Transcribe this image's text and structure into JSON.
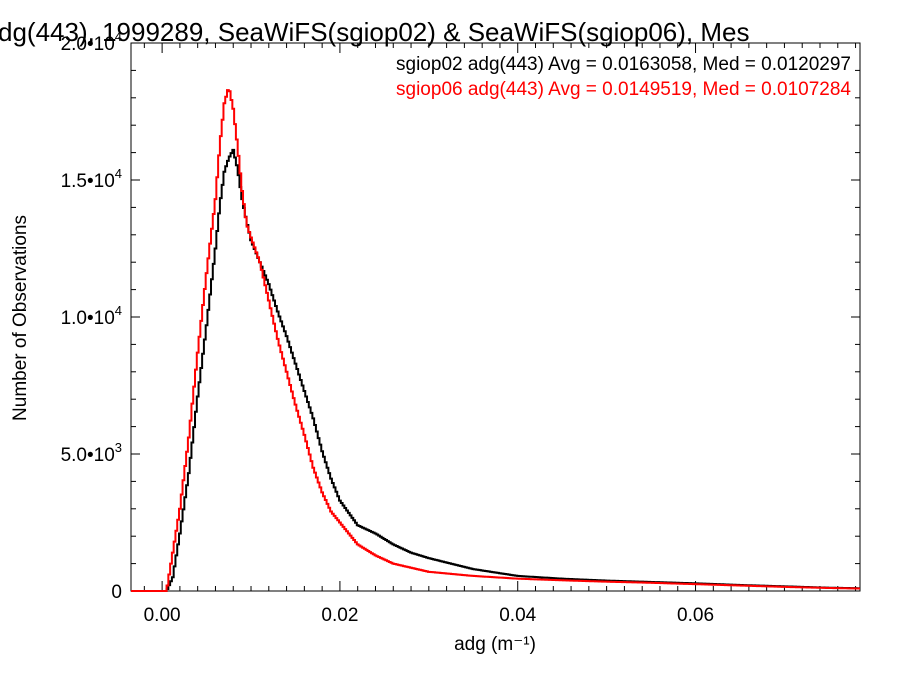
{
  "chart_data": {
    "type": "line",
    "title": "dg(443), 1999289, SeaWiFS(sgiop02) & SeaWiFS(sgiop06), Mes",
    "xlabel": "adg (m⁻¹)",
    "ylabel": "Number of Observations",
    "xlim": [
      -0.0035,
      0.0785
    ],
    "ylim": [
      0,
      20000
    ],
    "x_ticks": [
      0.0,
      0.02,
      0.04,
      0.06
    ],
    "x_tick_labels": [
      "0.00",
      "0.02",
      "0.04",
      "0.06"
    ],
    "y_ticks": [
      0,
      5000,
      10000,
      15000,
      20000
    ],
    "y_tick_labels": [
      {
        "mantissa": "0",
        "exp": ""
      },
      {
        "mantissa": "5.0•10",
        "exp": "3"
      },
      {
        "mantissa": "1.0•10",
        "exp": "4"
      },
      {
        "mantissa": "1.5•10",
        "exp": "4"
      },
      {
        "mantissa": "2.0•10",
        "exp": "4"
      }
    ],
    "grid": false,
    "legend_position": "top-right",
    "series": [
      {
        "name": "sgiop02 adg(443) Avg = 0.0163058, Med = 0.0120297",
        "color": "#000000",
        "x": [
          -0.0035,
          0.0005,
          0.0012,
          0.002,
          0.003,
          0.004,
          0.005,
          0.006,
          0.0065,
          0.007,
          0.0075,
          0.008,
          0.0085,
          0.009,
          0.0095,
          0.01,
          0.011,
          0.012,
          0.013,
          0.014,
          0.015,
          0.016,
          0.017,
          0.018,
          0.019,
          0.02,
          0.022,
          0.024,
          0.026,
          0.028,
          0.03,
          0.035,
          0.04,
          0.045,
          0.05,
          0.055,
          0.06,
          0.065,
          0.07,
          0.075,
          0.0785
        ],
        "y": [
          0,
          0,
          500,
          2100,
          4300,
          7100,
          9700,
          12500,
          14100,
          15300,
          15800,
          16100,
          15400,
          14300,
          13500,
          12800,
          12000,
          11200,
          10200,
          9300,
          8300,
          7300,
          6300,
          5100,
          4100,
          3300,
          2400,
          2100,
          1700,
          1400,
          1200,
          800,
          550,
          450,
          380,
          330,
          280,
          220,
          170,
          120,
          100
        ]
      },
      {
        "name": "sgiop06 adg(443) Avg = 0.0149519, Med = 0.0107284",
        "color": "#ff0000",
        "x": [
          -0.0035,
          0.0005,
          0.0012,
          0.002,
          0.003,
          0.004,
          0.005,
          0.006,
          0.0065,
          0.007,
          0.0075,
          0.008,
          0.0085,
          0.009,
          0.0095,
          0.01,
          0.011,
          0.012,
          0.013,
          0.014,
          0.015,
          0.016,
          0.017,
          0.018,
          0.019,
          0.02,
          0.022,
          0.024,
          0.026,
          0.028,
          0.03,
          0.035,
          0.04,
          0.045,
          0.05,
          0.055,
          0.06,
          0.065,
          0.07,
          0.075,
          0.0785
        ],
        "y": [
          0,
          0,
          1400,
          3000,
          5600,
          8700,
          11600,
          14300,
          16300,
          17800,
          18400,
          17600,
          16200,
          14600,
          13400,
          12900,
          12000,
          10600,
          9200,
          8000,
          6800,
          5700,
          4500,
          3600,
          2900,
          2500,
          1700,
          1300,
          1000,
          850,
          700,
          550,
          450,
          390,
          340,
          300,
          250,
          200,
          150,
          110,
          90
        ]
      }
    ]
  }
}
